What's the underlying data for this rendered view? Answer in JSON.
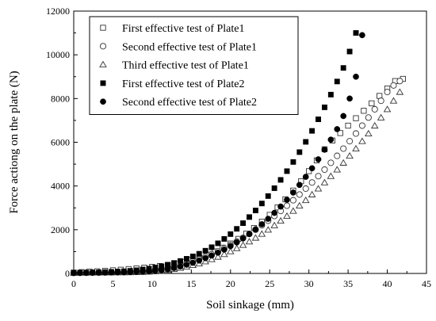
{
  "chart_data": {
    "type": "scatter",
    "title": "",
    "xlabel": "Soil sinkage (mm)",
    "ylabel": "Force actiong on the plate (N)",
    "xlim": [
      0,
      45
    ],
    "ylim": [
      0,
      12000
    ],
    "xticks": [
      0,
      5,
      10,
      15,
      20,
      25,
      30,
      35,
      40,
      45
    ],
    "yticks": [
      0,
      2000,
      4000,
      6000,
      8000,
      10000,
      12000
    ],
    "legend_position": "top-left",
    "grid": false,
    "series": [
      {
        "name": "First effective test of Plate1",
        "marker": "open-square",
        "color": "#333333",
        "x": [
          0,
          1,
          2,
          3,
          4,
          5,
          6,
          7,
          8,
          9,
          10,
          11,
          12,
          13,
          14,
          15,
          16,
          17,
          18,
          19,
          20,
          21,
          22,
          23,
          24,
          25,
          26,
          27,
          28,
          29,
          30,
          31,
          32,
          33,
          34,
          35,
          36,
          37,
          38,
          39,
          40,
          41,
          42
        ],
        "y": [
          40,
          60,
          80,
          100,
          120,
          145,
          170,
          200,
          230,
          265,
          300,
          340,
          390,
          450,
          530,
          620,
          730,
          860,
          1010,
          1180,
          1370,
          1580,
          1820,
          2080,
          2370,
          2680,
          3020,
          3390,
          3790,
          4220,
          4680,
          5170,
          5680,
          6080,
          6420,
          6760,
          7100,
          7440,
          7780,
          8120,
          8460,
          8800,
          8900
        ]
      },
      {
        "name": "Second effective test of Plate1",
        "marker": "open-circle",
        "color": "#333333",
        "x": [
          0,
          0.8,
          1.6,
          2.4,
          3.2,
          4,
          4.8,
          5.6,
          6.4,
          7.2,
          8,
          8.8,
          9.6,
          10.4,
          11.2,
          12,
          12.8,
          13.6,
          14.4,
          15.2,
          16,
          16.8,
          17.6,
          18.4,
          19.2,
          20,
          20.8,
          21.6,
          22.4,
          23.2,
          24,
          24.8,
          25.6,
          26.4,
          27.2,
          28,
          28.8,
          29.6,
          30.4,
          31.2,
          32,
          32.8,
          33.6,
          34.4,
          35.2,
          36,
          36.8,
          37.6,
          38.4,
          39.2,
          40,
          40.8,
          41.6
        ],
        "y": [
          20,
          25,
          30,
          35,
          40,
          45,
          55,
          65,
          75,
          90,
          105,
          120,
          140,
          165,
          200,
          250,
          310,
          380,
          460,
          550,
          650,
          760,
          880,
          1010,
          1150,
          1300,
          1460,
          1630,
          1810,
          2000,
          2200,
          2410,
          2630,
          2860,
          3100,
          3350,
          3610,
          3880,
          4160,
          4450,
          4750,
          5060,
          5380,
          5710,
          6050,
          6400,
          6760,
          7130,
          7510,
          7900,
          8300,
          8600,
          8800
        ]
      },
      {
        "name": "Third effective test of Plate1",
        "marker": "open-triangle",
        "color": "#333333",
        "x": [
          0,
          0.8,
          1.6,
          2.4,
          3.2,
          4,
          4.8,
          5.6,
          6.4,
          7.2,
          8,
          8.8,
          9.6,
          10.4,
          11.2,
          12,
          12.8,
          13.6,
          14.4,
          15.2,
          16,
          16.8,
          17.6,
          18.4,
          19.2,
          20,
          20.8,
          21.6,
          22.4,
          23.2,
          24,
          24.8,
          25.6,
          26.4,
          27.2,
          28,
          28.8,
          29.6,
          30.4,
          31.2,
          32,
          32.8,
          33.6,
          34.4,
          35.2,
          36,
          36.8,
          37.6,
          38.4,
          39.2,
          40,
          40.8,
          41.6
        ],
        "y": [
          20,
          22,
          24,
          26,
          28,
          30,
          32,
          35,
          38,
          42,
          48,
          56,
          68,
          85,
          110,
          145,
          190,
          240,
          300,
          370,
          450,
          540,
          640,
          750,
          870,
          1000,
          1140,
          1290,
          1450,
          1620,
          1800,
          1990,
          2190,
          2400,
          2620,
          2850,
          3090,
          3340,
          3600,
          3870,
          4150,
          4440,
          4740,
          5050,
          5370,
          5700,
          6040,
          6390,
          6750,
          7120,
          7500,
          7890,
          8290
        ]
      },
      {
        "name": "First effective test of Plate2",
        "marker": "filled-square",
        "color": "#000000",
        "x": [
          0,
          0.8,
          1.6,
          2.4,
          3.2,
          4,
          4.8,
          5.6,
          6.4,
          7.2,
          8,
          8.8,
          9.6,
          10.4,
          11.2,
          12,
          12.8,
          13.6,
          14.4,
          15.2,
          16,
          16.8,
          17.6,
          18.4,
          19.2,
          20,
          20.8,
          21.6,
          22.4,
          23.2,
          24,
          24.8,
          25.6,
          26.4,
          27.2,
          28,
          28.8,
          29.6,
          30.4,
          31.2,
          32,
          32.8,
          33.6,
          34.4,
          35.2,
          36
        ],
        "y": [
          30,
          35,
          40,
          45,
          50,
          60,
          70,
          85,
          100,
          120,
          145,
          180,
          220,
          270,
          330,
          400,
          480,
          570,
          670,
          780,
          900,
          1040,
          1200,
          1380,
          1580,
          1800,
          2040,
          2300,
          2580,
          2880,
          3200,
          3540,
          3900,
          4280,
          4680,
          5100,
          5550,
          6020,
          6520,
          7050,
          7600,
          8180,
          8780,
          9400,
          10150,
          11000
        ]
      },
      {
        "name": "Second effective test of Plate2",
        "marker": "filled-circle",
        "color": "#000000",
        "x": [
          0,
          0.8,
          1.6,
          2.4,
          3.2,
          4,
          4.8,
          5.6,
          6.4,
          7.2,
          8,
          8.8,
          9.6,
          10.4,
          11.2,
          12,
          12.8,
          13.6,
          14.4,
          15.2,
          16,
          16.8,
          17.6,
          18.4,
          19.2,
          20,
          20.8,
          21.6,
          22.4,
          23.2,
          24,
          24.8,
          25.6,
          26.4,
          27.2,
          28,
          28.8,
          29.6,
          30.4,
          31.2,
          32,
          32.8,
          33.6,
          34.4,
          35.2,
          36,
          36.8
        ],
        "y": [
          25,
          28,
          31,
          34,
          37,
          40,
          45,
          50,
          55,
          62,
          70,
          80,
          95,
          115,
          145,
          190,
          250,
          320,
          400,
          490,
          590,
          700,
          820,
          950,
          1090,
          1250,
          1420,
          1600,
          1800,
          2020,
          2250,
          2500,
          2770,
          3060,
          3370,
          3700,
          4050,
          4420,
          4810,
          5220,
          5660,
          6120,
          6600,
          7200,
          8000,
          9000,
          10900
        ]
      }
    ]
  }
}
